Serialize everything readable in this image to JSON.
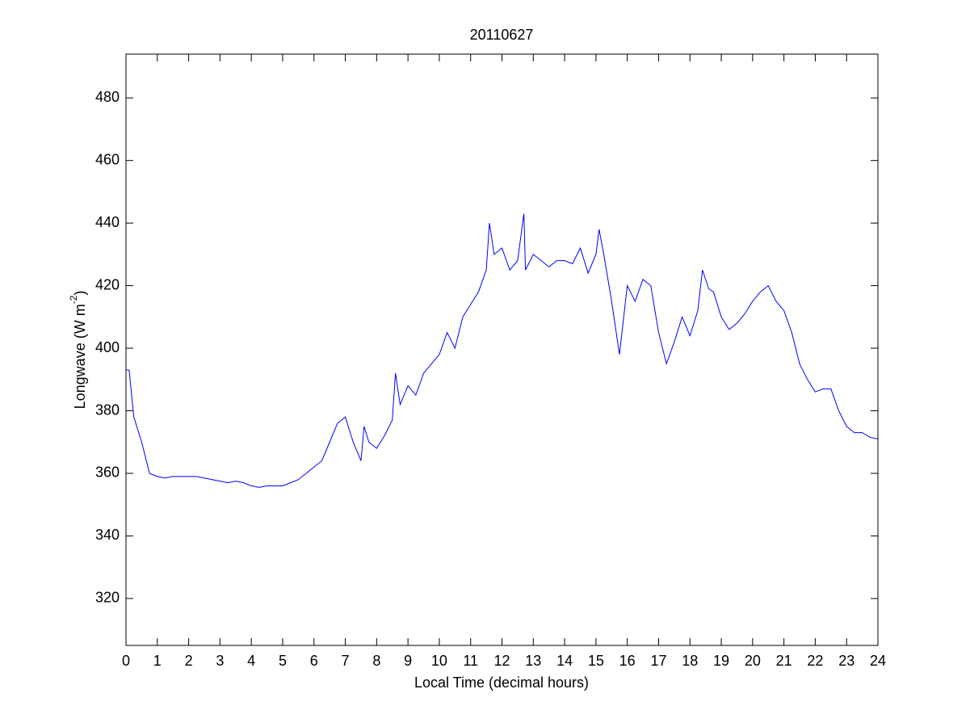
{
  "chart_data": {
    "type": "line",
    "title": "20110627",
    "x_label": "Local Time (decimal hours)",
    "y_label": {
      "text": "Longwave (W m",
      "superscript": "-2",
      "suffix": ")"
    },
    "xlim": [
      0,
      24
    ],
    "ylim": [
      305,
      494
    ],
    "xticks": [
      0,
      1,
      2,
      3,
      4,
      5,
      6,
      7,
      8,
      9,
      10,
      11,
      12,
      13,
      14,
      15,
      16,
      17,
      18,
      19,
      20,
      21,
      22,
      23,
      24
    ],
    "yticks": [
      320,
      340,
      360,
      380,
      400,
      420,
      440,
      460,
      480
    ],
    "grid": false,
    "series": [
      {
        "color": "#0000ff",
        "x": [
          0,
          0.1,
          0.25,
          0.5,
          0.75,
          1,
          1.25,
          1.5,
          1.75,
          2,
          2.25,
          2.5,
          2.75,
          3,
          3.25,
          3.5,
          3.75,
          4,
          4.25,
          4.5,
          4.75,
          5,
          5.25,
          5.5,
          5.75,
          6,
          6.25,
          6.5,
          6.75,
          7,
          7.25,
          7.5,
          7.6,
          7.75,
          8,
          8.25,
          8.5,
          8.6,
          8.75,
          9,
          9.25,
          9.5,
          9.75,
          10,
          10.25,
          10.5,
          10.75,
          11,
          11.25,
          11.5,
          11.6,
          11.75,
          12,
          12.25,
          12.5,
          12.7,
          12.75,
          13,
          13.25,
          13.5,
          13.75,
          14,
          14.25,
          14.5,
          14.75,
          15,
          15.1,
          15.25,
          15.5,
          15.75,
          16,
          16.25,
          16.5,
          16.75,
          17,
          17.25,
          17.5,
          17.75,
          18,
          18.25,
          18.4,
          18.6,
          18.75,
          19,
          19.25,
          19.5,
          19.75,
          20,
          20.25,
          20.5,
          20.75,
          21,
          21.25,
          21.5,
          21.75,
          22,
          22.25,
          22.5,
          22.75,
          23,
          23.25,
          23.5,
          23.75,
          24
        ],
        "values": [
          393,
          393,
          378,
          370,
          360,
          359,
          358.5,
          359,
          359,
          359,
          359,
          358.5,
          358,
          357.5,
          357,
          357.5,
          357,
          356,
          355.5,
          356,
          356,
          356,
          357,
          358,
          360,
          362,
          364,
          370,
          376,
          378,
          370,
          364,
          375,
          370,
          368,
          372,
          377,
          392,
          382,
          388,
          385,
          392,
          395,
          398,
          405,
          400,
          410,
          414,
          418,
          425,
          440,
          430,
          432,
          425,
          428,
          443,
          425,
          430,
          428,
          426,
          428,
          428,
          427,
          432,
          424,
          430,
          438,
          430,
          415,
          398,
          420,
          415,
          422,
          420,
          405,
          395,
          402,
          410,
          404,
          412,
          425,
          419,
          418,
          410,
          406,
          408,
          411,
          415,
          418,
          420,
          415,
          412,
          405,
          395,
          390,
          386,
          387,
          387,
          380,
          375,
          373,
          373,
          371.5,
          371
        ]
      }
    ]
  }
}
